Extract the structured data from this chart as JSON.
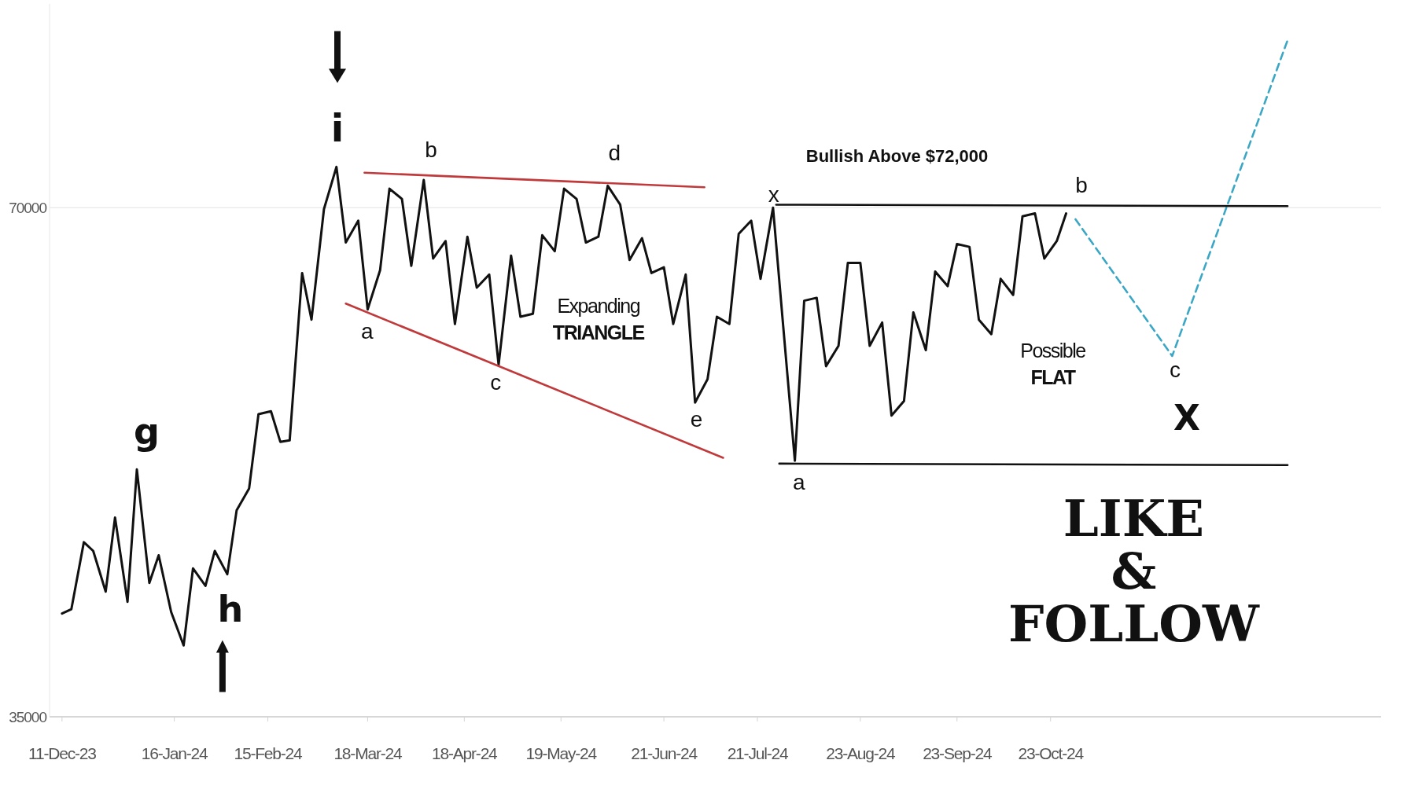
{
  "chart_data": {
    "type": "line",
    "xlim": [
      "2023-12-07",
      "2025-02-06"
    ],
    "ylim": [
      35000,
      84000
    ],
    "yticks": [
      35000,
      70000
    ],
    "xticks": [
      {
        "value": "2023-12-11",
        "label": "11-Dec-23"
      },
      {
        "value": "2024-01-16",
        "label": "16-Jan-24"
      },
      {
        "value": "2024-02-15",
        "label": "15-Feb-24"
      },
      {
        "value": "2024-03-18",
        "label": "18-Mar-24"
      },
      {
        "value": "2024-04-18",
        "label": "18-Apr-24"
      },
      {
        "value": "2024-05-19",
        "label": "19-May-24"
      },
      {
        "value": "2024-06-21",
        "label": "21-Jun-24"
      },
      {
        "value": "2024-07-21",
        "label": "21-Jul-24"
      },
      {
        "value": "2024-08-23",
        "label": "23-Aug-24"
      },
      {
        "value": "2024-09-23",
        "label": "23-Sep-24"
      },
      {
        "value": "2024-10-23",
        "label": "23-Oct-24"
      }
    ],
    "grid": "y",
    "marker": "none",
    "series": [
      {
        "color": "#111111",
        "line_style": "solid",
        "x": [
          "2023-12-11",
          "2023-12-14",
          "2023-12-18",
          "2023-12-21",
          "2023-12-25",
          "2023-12-28",
          "2024-01-01",
          "2024-01-04",
          "2024-01-08",
          "2024-01-11",
          "2024-01-15",
          "2024-01-19",
          "2024-01-22",
          "2024-01-26",
          "2024-01-29",
          "2024-02-02",
          "2024-02-05",
          "2024-02-09",
          "2024-02-12",
          "2024-02-16",
          "2024-02-19",
          "2024-02-22",
          "2024-02-26",
          "2024-02-29",
          "2024-03-04",
          "2024-03-08",
          "2024-03-11",
          "2024-03-15",
          "2024-03-18",
          "2024-03-22",
          "2024-03-25",
          "2024-03-29",
          "2024-04-01",
          "2024-04-05",
          "2024-04-08",
          "2024-04-12",
          "2024-04-15",
          "2024-04-19",
          "2024-04-22",
          "2024-04-26",
          "2024-04-29",
          "2024-05-03",
          "2024-05-06",
          "2024-05-10",
          "2024-05-13",
          "2024-05-17",
          "2024-05-20",
          "2024-05-24",
          "2024-05-27",
          "2024-05-31",
          "2024-06-03",
          "2024-06-07",
          "2024-06-10",
          "2024-06-14",
          "2024-06-17",
          "2024-06-21",
          "2024-06-24",
          "2024-06-28",
          "2024-07-01",
          "2024-07-05",
          "2024-07-08",
          "2024-07-12",
          "2024-07-15",
          "2024-07-19",
          "2024-07-22",
          "2024-07-26",
          "2024-07-29",
          "2024-08-02",
          "2024-08-05",
          "2024-08-09",
          "2024-08-12",
          "2024-08-16",
          "2024-08-19",
          "2024-08-23",
          "2024-08-26",
          "2024-08-30",
          "2024-09-02",
          "2024-09-06",
          "2024-09-09",
          "2024-09-13",
          "2024-09-16",
          "2024-09-20",
          "2024-09-23",
          "2024-09-27",
          "2024-09-30",
          "2024-10-04",
          "2024-10-07",
          "2024-10-11",
          "2024-10-14",
          "2024-10-18",
          "2024-10-21",
          "2024-10-25",
          "2024-10-28"
        ],
        "values": [
          42100,
          42400,
          47000,
          46400,
          43600,
          48700,
          42900,
          52000,
          44200,
          46100,
          42200,
          39900,
          45200,
          44000,
          46400,
          44800,
          49200,
          50700,
          55800,
          56000,
          53900,
          54000,
          65500,
          62300,
          69900,
          72800,
          67600,
          69100,
          63000,
          65700,
          71300,
          70600,
          66000,
          71900,
          66500,
          67700,
          62000,
          68000,
          64500,
          65400,
          59200,
          66700,
          62500,
          62700,
          68100,
          67000,
          71300,
          70600,
          67600,
          68000,
          71500,
          70200,
          66400,
          67900,
          65500,
          65900,
          62000,
          65400,
          56600,
          58200,
          62500,
          62000,
          68200,
          69100,
          65100,
          70000,
          62500,
          52600,
          63600,
          63800,
          59100,
          60500,
          66200,
          66200,
          60500,
          62100,
          55700,
          56700,
          62800,
          60200,
          65600,
          64600,
          67500,
          67300,
          62300,
          61300,
          65100,
          64000,
          69400,
          69600,
          66500,
          67700,
          69600
        ]
      },
      {
        "color": "#3ba7c4",
        "line_style": "dashed",
        "x": [
          "2024-10-31",
          "2024-12-01",
          "2025-01-07"
        ],
        "values": [
          69200,
          59800,
          81500
        ]
      },
      {
        "color": "#c0393b",
        "line_style": "solid",
        "x": [
          "2024-03-17",
          "2024-07-04"
        ],
        "values": [
          72400,
          71400
        ]
      },
      {
        "color": "#c0393b",
        "line_style": "solid",
        "x": [
          "2024-03-11",
          "2024-07-10"
        ],
        "values": [
          63400,
          52800
        ]
      },
      {
        "color": "#111111",
        "line_style": "solid",
        "x": [
          "2024-07-27",
          "2025-01-07"
        ],
        "values": [
          70200,
          70100
        ]
      },
      {
        "color": "#111111",
        "line_style": "solid",
        "x": [
          "2024-07-28",
          "2025-01-07"
        ],
        "values": [
          52400,
          52300
        ]
      }
    ],
    "annotations": [
      "g",
      "h",
      "i",
      "a",
      "b",
      "c",
      "d",
      "e",
      "x",
      "a",
      "b",
      "c",
      "X",
      "Expanding\nTRIANGLE",
      "Possible\nFLAT",
      "Bullish Above $72,000",
      "LIKE\n&\nFOLLOW"
    ]
  }
}
